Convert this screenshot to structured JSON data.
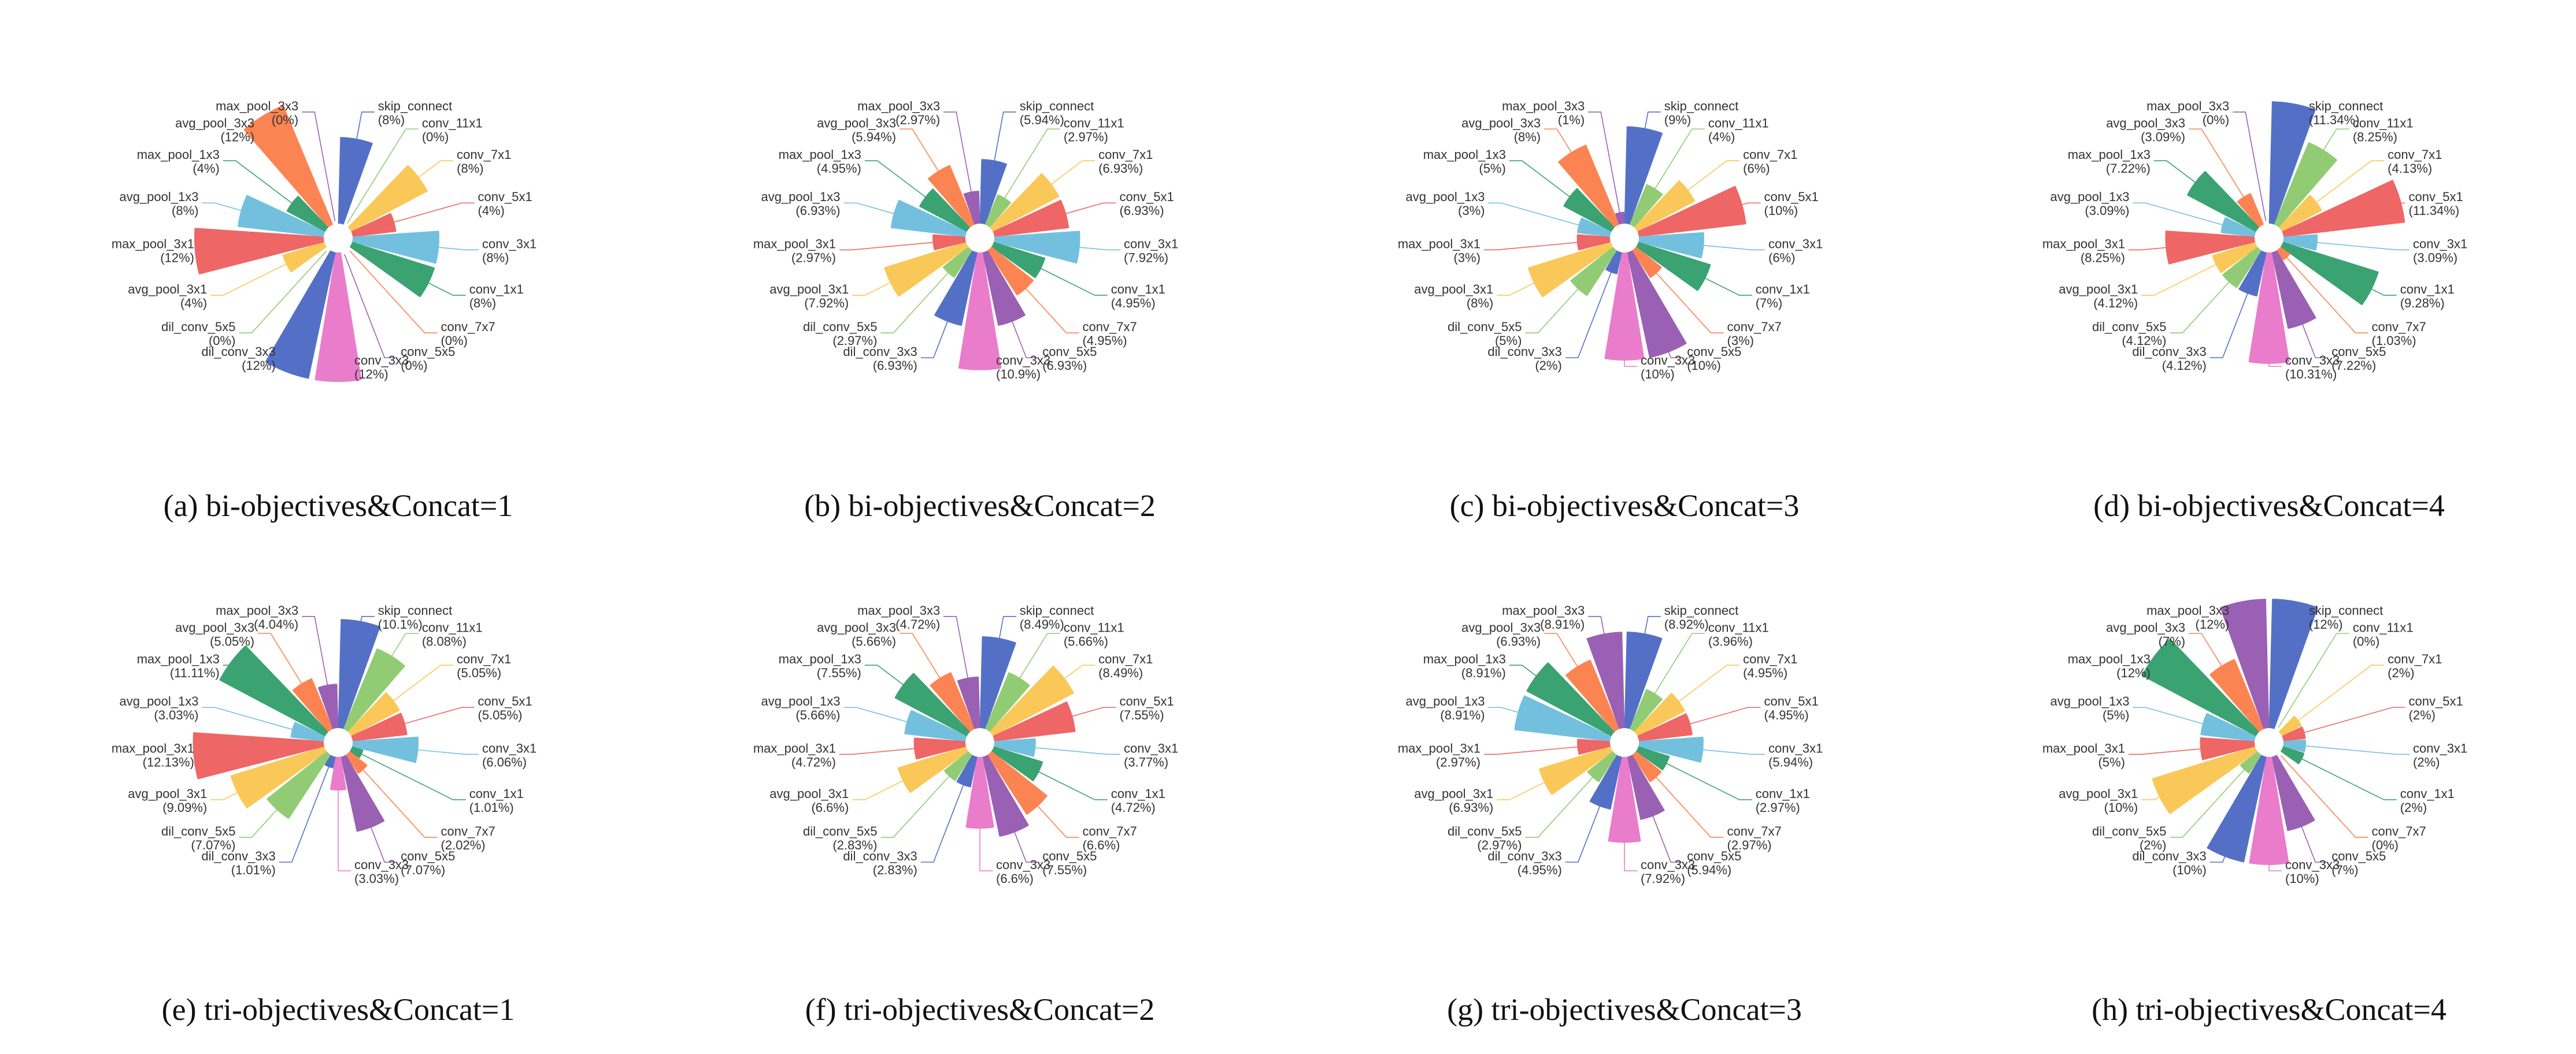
{
  "chart_data": [
    {
      "type": "nightingale-rose",
      "caption": "(a)  bi-objectives&Concat=1",
      "labels": [
        "skip_connect",
        "conv_11x1",
        "conv_7x1",
        "conv_5x1",
        "conv_3x1",
        "conv_1x1",
        "conv_7x7",
        "conv_5x5",
        "conv_3x3",
        "dil_conv_3x3",
        "dil_conv_5x5",
        "avg_pool_3x1",
        "max_pool_3x1",
        "avg_pool_1x3",
        "max_pool_1x3",
        "avg_pool_3x3",
        "max_pool_3x3"
      ],
      "values": [
        8,
        0,
        8,
        4,
        8,
        8,
        0,
        0,
        12,
        12,
        0,
        4,
        12,
        8,
        4,
        12,
        0
      ],
      "value_labels": [
        "(8%)",
        "(0%)",
        "(8%)",
        "(4%)",
        "(8%)",
        "(8%)",
        "(0%)",
        "(0%)",
        "(12%)",
        "(12%)",
        "(0%)",
        "(4%)",
        "(12%)",
        "(8%)",
        "(4%)",
        "(12%)",
        "(0%)"
      ]
    },
    {
      "type": "nightingale-rose",
      "caption": "(b)  bi-objectives&Concat=2",
      "labels": [
        "skip_connect",
        "conv_11x1",
        "conv_7x1",
        "conv_5x1",
        "conv_3x1",
        "conv_1x1",
        "conv_7x7",
        "conv_5x5",
        "conv_3x3",
        "dil_conv_3x3",
        "dil_conv_5x5",
        "avg_pool_3x1",
        "max_pool_3x1",
        "avg_pool_1x3",
        "max_pool_1x3",
        "avg_pool_3x3",
        "max_pool_3x3"
      ],
      "values": [
        5.94,
        2.97,
        6.93,
        6.93,
        7.92,
        4.95,
        4.95,
        6.93,
        10.9,
        6.93,
        2.97,
        7.92,
        2.97,
        6.93,
        4.95,
        5.94,
        2.97
      ],
      "value_labels": [
        "(5.94%)",
        "(2.97%)",
        "(6.93%)",
        "(6.93%)",
        "(7.92%)",
        "(4.95%)",
        "(4.95%)",
        "(6.93%)",
        "(10.9%)",
        "(6.93%)",
        "(2.97%)",
        "(7.92%)",
        "(2.97%)",
        "(6.93%)",
        "(4.95%)",
        "(5.94%)",
        "(2.97%)"
      ]
    },
    {
      "type": "nightingale-rose",
      "caption": "(c)  bi-objectives&Concat=3",
      "labels": [
        "skip_connect",
        "conv_11x1",
        "conv_7x1",
        "conv_5x1",
        "conv_3x1",
        "conv_1x1",
        "conv_7x7",
        "conv_5x5",
        "conv_3x3",
        "dil_conv_3x3",
        "dil_conv_5x5",
        "avg_pool_3x1",
        "max_pool_3x1",
        "avg_pool_1x3",
        "max_pool_1x3",
        "avg_pool_3x3",
        "max_pool_3x3"
      ],
      "values": [
        9,
        4,
        6,
        10,
        6,
        7,
        3,
        10,
        10,
        2,
        5,
        8,
        3,
        3,
        5,
        8,
        1
      ],
      "value_labels": [
        "(9%)",
        "(4%)",
        "(6%)",
        "(10%)",
        "(6%)",
        "(7%)",
        "(3%)",
        "(10%)",
        "(10%)",
        "(2%)",
        "(5%)",
        "(8%)",
        "(3%)",
        "(3%)",
        "(5%)",
        "(8%)",
        "(1%)"
      ]
    },
    {
      "type": "nightingale-rose",
      "caption": "(d)  bi-objectives&Concat=4",
      "labels": [
        "skip_connect",
        "conv_11x1",
        "conv_7x1",
        "conv_5x1",
        "conv_3x1",
        "conv_1x1",
        "conv_7x7",
        "conv_5x5",
        "conv_3x3",
        "dil_conv_3x3",
        "dil_conv_5x5",
        "avg_pool_3x1",
        "max_pool_3x1",
        "avg_pool_1x3",
        "max_pool_1x3",
        "avg_pool_3x3",
        "max_pool_3x3"
      ],
      "values": [
        11.34,
        8.25,
        4.13,
        11.34,
        3.09,
        9.28,
        1.03,
        7.22,
        10.31,
        4.12,
        4.12,
        4.12,
        8.25,
        3.09,
        7.22,
        3.09,
        0
      ],
      "value_labels": [
        "(11.34%)",
        "(8.25%)",
        "(4.13%)",
        "(11.34%)",
        "(3.09%)",
        "(9.28%)",
        "(1.03%)",
        "(7.22%)",
        "(10.31%)",
        "(4.12%)",
        "(4.12%)",
        "(4.12%)",
        "(8.25%)",
        "(3.09%)",
        "(7.22%)",
        "(3.09%)",
        "(0%)"
      ]
    },
    {
      "type": "nightingale-rose",
      "caption": "(e)  tri-objectives&Concat=1",
      "labels": [
        "skip_connect",
        "conv_11x1",
        "conv_7x1",
        "conv_5x1",
        "conv_3x1",
        "conv_1x1",
        "conv_7x7",
        "conv_5x5",
        "conv_3x3",
        "dil_conv_3x3",
        "dil_conv_5x5",
        "avg_pool_3x1",
        "max_pool_3x1",
        "avg_pool_1x3",
        "max_pool_1x3",
        "avg_pool_3x3",
        "max_pool_3x3"
      ],
      "values": [
        10.1,
        8.08,
        5.05,
        5.05,
        6.06,
        1.01,
        2.02,
        7.07,
        3.03,
        1.01,
        7.07,
        9.09,
        12.13,
        3.03,
        11.11,
        5.05,
        4.04
      ],
      "value_labels": [
        "(10.1%)",
        "(8.08%)",
        "(5.05%)",
        "(5.05%)",
        "(6.06%)",
        "(1.01%)",
        "(2.02%)",
        "(7.07%)",
        "(3.03%)",
        "(1.01%)",
        "(7.07%)",
        "(9.09%)",
        "(12.13%)",
        "(3.03%)",
        "(11.11%)",
        "(5.05%)",
        "(4.04%)"
      ]
    },
    {
      "type": "nightingale-rose",
      "caption": "(f)  tri-objectives&Concat=2",
      "labels": [
        "skip_connect",
        "conv_11x1",
        "conv_7x1",
        "conv_5x1",
        "conv_3x1",
        "conv_1x1",
        "conv_7x7",
        "conv_5x5",
        "conv_3x3",
        "dil_conv_3x3",
        "dil_conv_5x5",
        "avg_pool_3x1",
        "max_pool_3x1",
        "avg_pool_1x3",
        "max_pool_1x3",
        "avg_pool_3x3",
        "max_pool_3x3"
      ],
      "values": [
        8.49,
        5.66,
        8.49,
        7.55,
        3.77,
        4.72,
        6.6,
        7.55,
        6.6,
        2.83,
        2.83,
        6.6,
        4.72,
        5.66,
        7.55,
        5.66,
        4.72
      ],
      "value_labels": [
        "(8.49%)",
        "(5.66%)",
        "(8.49%)",
        "(7.55%)",
        "(3.77%)",
        "(4.72%)",
        "(6.6%)",
        "(7.55%)",
        "(6.6%)",
        "(2.83%)",
        "(2.83%)",
        "(6.6%)",
        "(4.72%)",
        "(5.66%)",
        "(7.55%)",
        "(5.66%)",
        "(4.72%)"
      ]
    },
    {
      "type": "nightingale-rose",
      "caption": "(g)  tri-objectives&Concat=3",
      "labels": [
        "skip_connect",
        "conv_11x1",
        "conv_7x1",
        "conv_5x1",
        "conv_3x1",
        "conv_1x1",
        "conv_7x7",
        "conv_5x5",
        "conv_3x3",
        "dil_conv_3x3",
        "dil_conv_5x5",
        "avg_pool_3x1",
        "max_pool_3x1",
        "avg_pool_1x3",
        "max_pool_1x3",
        "avg_pool_3x3",
        "max_pool_3x3"
      ],
      "values": [
        8.92,
        3.96,
        4.95,
        4.95,
        5.94,
        2.97,
        2.97,
        5.94,
        7.92,
        4.95,
        2.97,
        6.93,
        2.97,
        8.91,
        8.91,
        6.93,
        8.91
      ],
      "value_labels": [
        "(8.92%)",
        "(3.96%)",
        "(4.95%)",
        "(4.95%)",
        "(5.94%)",
        "(2.97%)",
        "(2.97%)",
        "(5.94%)",
        "(7.92%)",
        "(4.95%)",
        "(2.97%)",
        "(6.93%)",
        "(2.97%)",
        "(8.91%)",
        "(8.91%)",
        "(6.93%)",
        "(8.91%)"
      ]
    },
    {
      "type": "nightingale-rose",
      "caption": "(h)  tri-objectives&Concat=4",
      "labels": [
        "skip_connect",
        "conv_11x1",
        "conv_7x1",
        "conv_5x1",
        "conv_3x1",
        "conv_1x1",
        "conv_7x7",
        "conv_5x5",
        "conv_3x3",
        "dil_conv_3x3",
        "dil_conv_5x5",
        "avg_pool_3x1",
        "max_pool_3x1",
        "avg_pool_1x3",
        "max_pool_1x3",
        "avg_pool_3x3",
        "max_pool_3x3"
      ],
      "values": [
        12,
        0,
        2,
        2,
        2,
        2,
        0,
        7,
        10,
        10,
        2,
        10,
        5,
        5,
        12,
        7,
        12
      ],
      "value_labels": [
        "(12%)",
        "(0%)",
        "(2%)",
        "(2%)",
        "(2%)",
        "(2%)",
        "(0%)",
        "(7%)",
        "(10%)",
        "(10%)",
        "(2%)",
        "(10%)",
        "(5%)",
        "(5%)",
        "(12%)",
        "(7%)",
        "(12%)"
      ]
    }
  ],
  "colors": [
    "#5470c6",
    "#91cc75",
    "#fac858",
    "#ee6666",
    "#73c0de",
    "#3ba272",
    "#fc8452",
    "#9a60b4",
    "#ea7ccc"
  ]
}
